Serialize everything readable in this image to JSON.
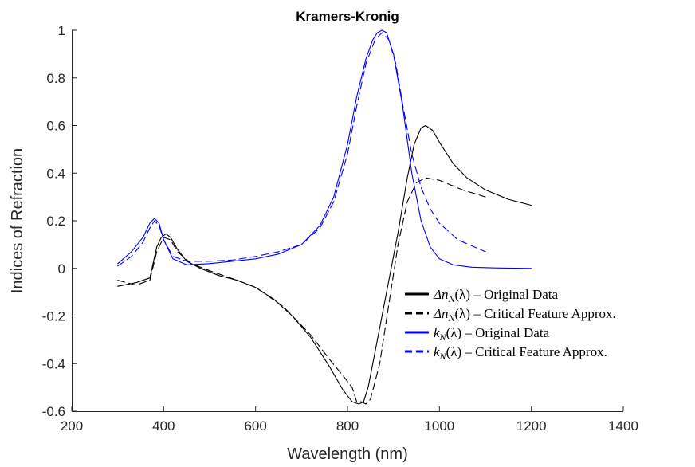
{
  "chart_data": {
    "type": "line",
    "title": "Kramers-Kronig",
    "xlabel": "Wavelength (nm)",
    "ylabel": "Indices of Refraction",
    "xlim": [
      200,
      1400
    ],
    "ylim": [
      -0.6,
      1
    ],
    "xticks": [
      "200",
      "400",
      "600",
      "800",
      "1000",
      "1200",
      "1400"
    ],
    "yticks": [
      "-0.6",
      "-0.4",
      "-0.2",
      "0",
      "0.2",
      "0.4",
      "0.6",
      "0.8",
      "1"
    ],
    "grid": false,
    "legend_position": "bottom-right",
    "series": [
      {
        "name": "Δnₙ(λ) – Original Data",
        "legend_main": "Δn",
        "legend_sub": "N",
        "legend_arg": "(λ) – Original Data",
        "color": "#000000",
        "dash": "solid",
        "x": [
          300,
          340,
          370,
          385,
          395,
          405,
          415,
          430,
          450,
          480,
          520,
          560,
          600,
          640,
          680,
          720,
          760,
          790,
          810,
          825,
          835,
          845,
          855,
          870,
          890,
          910,
          930,
          945,
          960,
          970,
          985,
          1000,
          1030,
          1060,
          1100,
          1150,
          1200
        ],
        "y": [
          -0.075,
          -0.06,
          -0.04,
          0.09,
          0.13,
          0.145,
          0.13,
          0.08,
          0.03,
          0.0,
          -0.03,
          -0.05,
          -0.08,
          -0.13,
          -0.2,
          -0.29,
          -0.41,
          -0.51,
          -0.56,
          -0.57,
          -0.56,
          -0.5,
          -0.4,
          -0.25,
          -0.05,
          0.15,
          0.38,
          0.52,
          0.59,
          0.6,
          0.58,
          0.53,
          0.44,
          0.38,
          0.33,
          0.29,
          0.265
        ]
      },
      {
        "name": "Δnₙ(λ) – Critical Feature Approx.",
        "legend_main": "Δn",
        "legend_sub": "N",
        "legend_arg": "(λ) – Critical Feature Approx.",
        "color": "#000000",
        "dash": "dashed",
        "x": [
          300,
          340,
          370,
          385,
          400,
          415,
          430,
          460,
          500,
          560,
          600,
          660,
          720,
          760,
          790,
          810,
          820,
          830,
          840,
          850,
          870,
          890,
          910,
          930,
          950,
          970,
          1000,
          1050,
          1100
        ],
        "y": [
          -0.05,
          -0.07,
          -0.05,
          0.07,
          0.13,
          0.12,
          0.07,
          0.02,
          -0.01,
          -0.05,
          -0.08,
          -0.16,
          -0.28,
          -0.38,
          -0.45,
          -0.5,
          -0.56,
          -0.56,
          -0.57,
          -0.55,
          -0.4,
          -0.15,
          0.1,
          0.28,
          0.36,
          0.38,
          0.37,
          0.33,
          0.3
        ]
      },
      {
        "name": "kₙ(λ) – Original Data",
        "legend_main": "k",
        "legend_sub": "N",
        "legend_arg": "(λ) – Original Data",
        "color": "#0000ff",
        "dash": "solid",
        "x": [
          300,
          330,
          355,
          370,
          380,
          390,
          400,
          420,
          450,
          500,
          550,
          600,
          650,
          700,
          740,
          770,
          800,
          820,
          840,
          855,
          865,
          875,
          885,
          900,
          920,
          940,
          960,
          980,
          1000,
          1030,
          1070,
          1120,
          1200
        ],
        "y": [
          0.02,
          0.07,
          0.13,
          0.19,
          0.21,
          0.19,
          0.12,
          0.04,
          0.015,
          0.02,
          0.03,
          0.04,
          0.06,
          0.1,
          0.18,
          0.3,
          0.52,
          0.72,
          0.88,
          0.96,
          0.99,
          1.0,
          0.99,
          0.9,
          0.68,
          0.4,
          0.2,
          0.09,
          0.04,
          0.015,
          0.005,
          0.002,
          0.0
        ]
      },
      {
        "name": "kₙ(λ) – Critical Feature Approx.",
        "legend_main": "k",
        "legend_sub": "N",
        "legend_arg": "(λ) – Critical Feature Approx.",
        "color": "#0000ff",
        "dash": "dashed",
        "x": [
          300,
          330,
          355,
          370,
          380,
          390,
          400,
          420,
          450,
          500,
          550,
          600,
          650,
          700,
          740,
          770,
          800,
          820,
          840,
          860,
          875,
          890,
          905,
          920,
          940,
          960,
          980,
          1000,
          1040,
          1100
        ],
        "y": [
          0.01,
          0.05,
          0.11,
          0.17,
          0.2,
          0.18,
          0.12,
          0.05,
          0.03,
          0.03,
          0.035,
          0.05,
          0.07,
          0.1,
          0.17,
          0.28,
          0.48,
          0.68,
          0.86,
          0.96,
          0.99,
          0.96,
          0.86,
          0.69,
          0.48,
          0.34,
          0.25,
          0.19,
          0.12,
          0.07
        ]
      }
    ]
  }
}
